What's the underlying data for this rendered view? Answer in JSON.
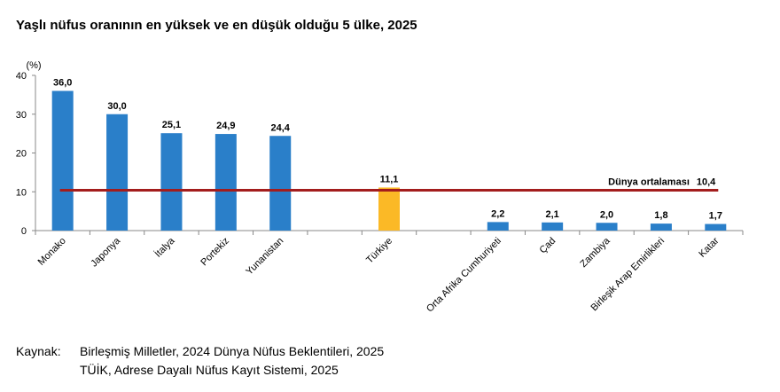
{
  "title": "Yaşlı nüfus oranının en yüksek ve en düşük olduğu 5 ülke, 2025",
  "source": {
    "label": "Kaynak:",
    "lines": [
      "Birleşmiş Milletler, 2024 Dünya Nüfus Beklentileri, 2025",
      "TÜİK, Adrese Dayalı Nüfus Kayıt Sistemi, 2025"
    ]
  },
  "colors": {
    "bar": "#2a7fc9",
    "highlight": "#fbb926",
    "average_line": "#a31d1d"
  },
  "chart_data": {
    "type": "bar",
    "y_unit": "(%)",
    "ylim": [
      0,
      40
    ],
    "yticks": [
      0,
      10,
      20,
      30,
      40
    ],
    "categories": [
      "Monako",
      "Japonya",
      "İtalya",
      "Portekiz",
      "Yunanistan",
      "Türkiye",
      "Orta Afrika Cumhuriyeti",
      "Çad",
      "Zambiya",
      "Birleşik Arap Emirlikleri",
      "Katar"
    ],
    "value_labels": [
      "36,0",
      "30,0",
      "25,1",
      "24,9",
      "24,4",
      "11,1",
      "2,2",
      "2,1",
      "2,0",
      "1,8",
      "1,7"
    ],
    "values": [
      36.0,
      30.0,
      25.1,
      24.9,
      24.4,
      11.1,
      2.2,
      2.1,
      2.0,
      1.8,
      1.7
    ],
    "highlight_category": "Türkiye",
    "reference_line": {
      "label": "Dünya ortalaması",
      "value": 10.4,
      "value_label": "10,4"
    }
  }
}
